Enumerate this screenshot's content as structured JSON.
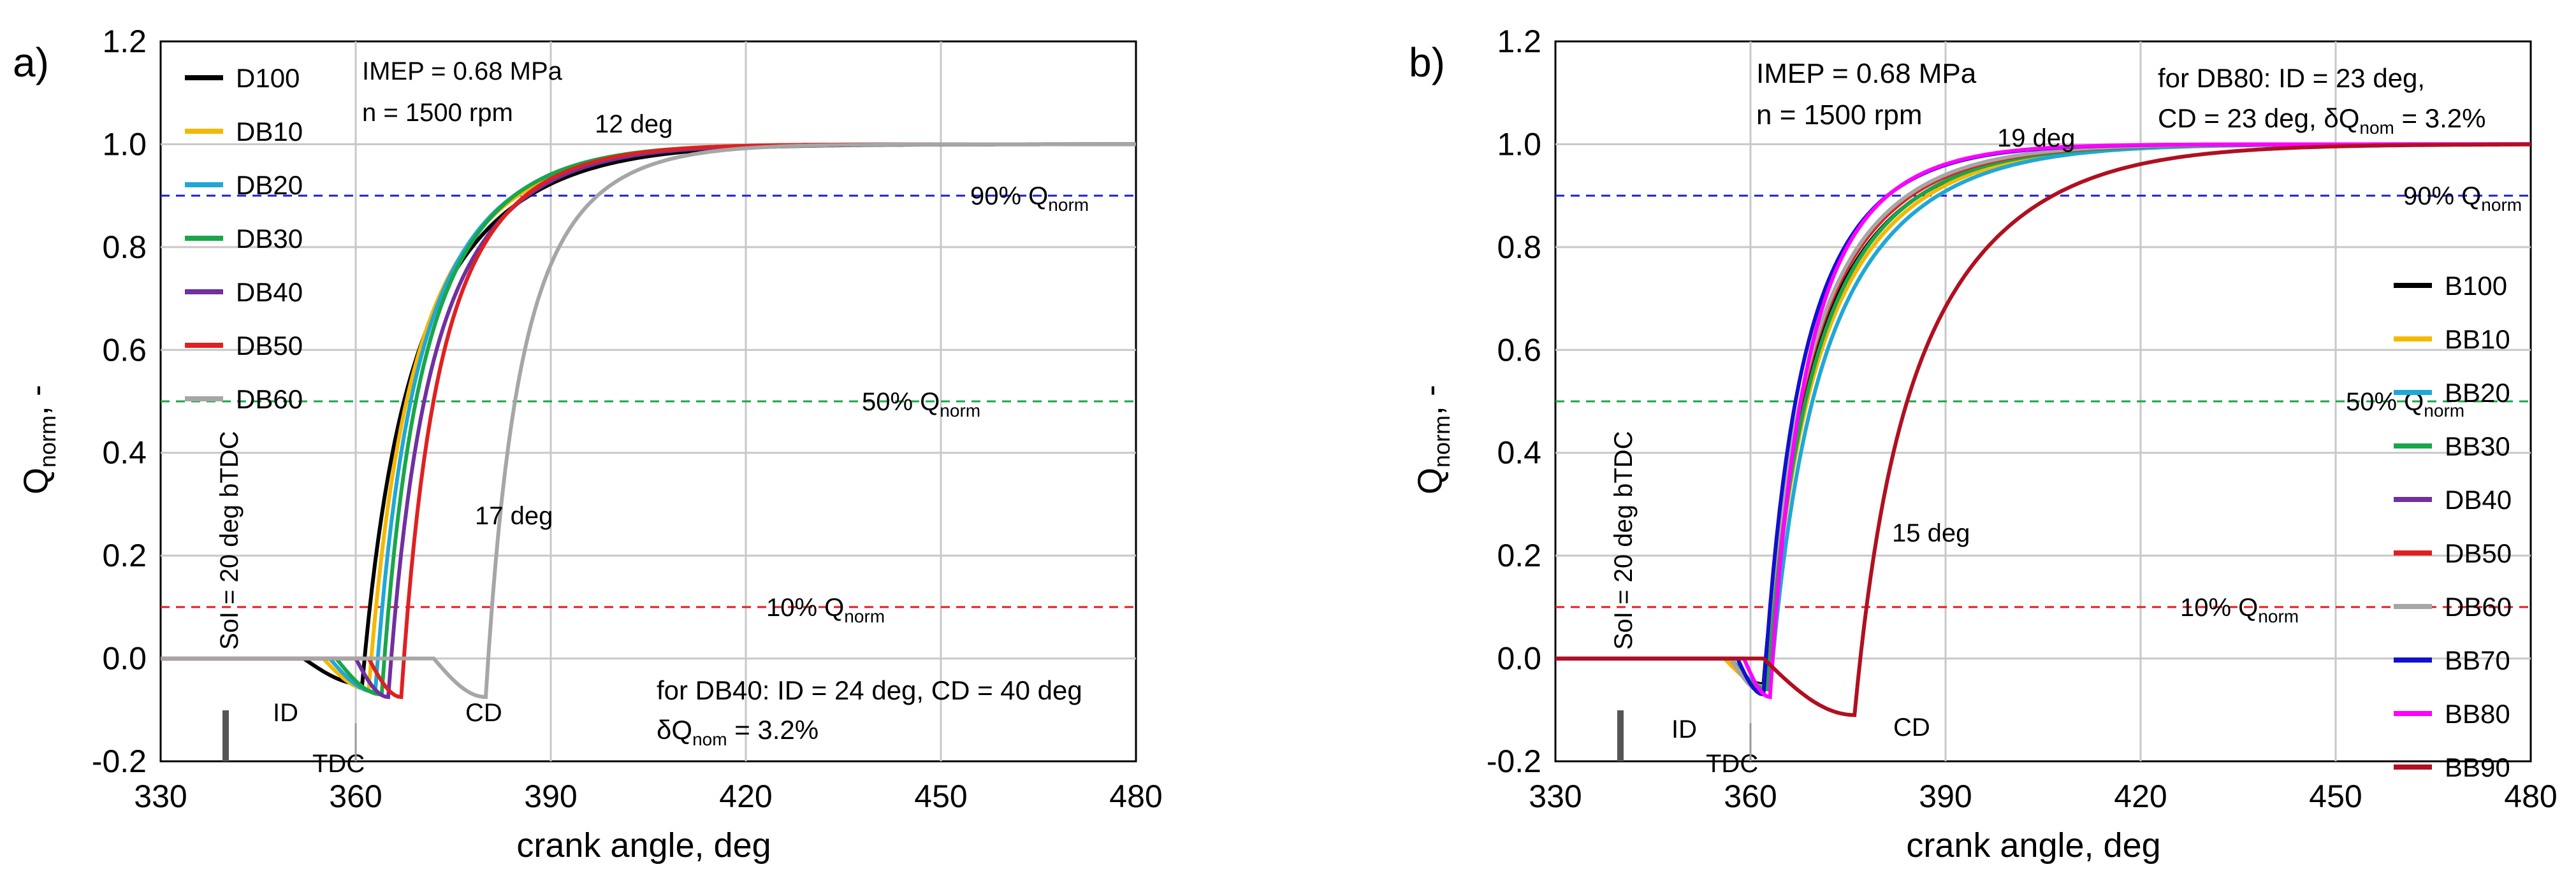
{
  "chart_data": [
    {
      "type": "line",
      "panel_label": "a)",
      "xlabel": "crank angle, deg",
      "ylabel_main": "Q",
      "ylabel_sub": "norm",
      "ylabel_suffix": ", -",
      "xlim": [
        330,
        480
      ],
      "ylim": [
        -0.2,
        1.2
      ],
      "xticks": [
        "330",
        "360",
        "390",
        "420",
        "450",
        "480"
      ],
      "yticks": [
        "-0.2",
        "0.0",
        "0.2",
        "0.4",
        "0.6",
        "0.8",
        "1.0",
        "1.2"
      ],
      "grid": true,
      "legend_position": "top-left",
      "info_lines": [
        "IMEP = 0.68 MPa",
        "n = 1500 rpm"
      ],
      "note_lines": [
        "for  DB40: ID = 24 deg, CD = 40 deg",
        "δQ",
        "nom",
        " = 3.2%"
      ],
      "tdc_label": "TDC",
      "soi_label": "SoI = 20 deg bTDC",
      "id_label": "ID",
      "cd_label": "CD",
      "deg_label_1": "12 deg",
      "deg_label_2": "17 deg",
      "ref_lines": [
        {
          "value": 0.9,
          "label": "90% Q",
          "sub": "norm",
          "color": "#1f1fd6"
        },
        {
          "value": 0.5,
          "label": "50% Q",
          "sub": "norm",
          "color": "#1aa64a"
        },
        {
          "value": 0.1,
          "label": "10% Q",
          "sub": "norm",
          "color": "#e02020"
        }
      ],
      "series": [
        {
          "name": "D100",
          "color": "#000000",
          "start": 352,
          "min": -0.05,
          "delay": 361,
          "k": 0.085
        },
        {
          "name": "DB10",
          "color": "#f5b800",
          "start": 355,
          "min": -0.06,
          "delay": 362,
          "k": 0.094
        },
        {
          "name": "DB20",
          "color": "#1fa8d6",
          "start": 356,
          "min": -0.065,
          "delay": 363,
          "k": 0.1
        },
        {
          "name": "DB30",
          "color": "#1aa64a",
          "start": 357,
          "min": -0.07,
          "delay": 364,
          "k": 0.104
        },
        {
          "name": "DB40",
          "color": "#7030a0",
          "start": 360,
          "min": -0.075,
          "delay": 365,
          "k": 0.1
        },
        {
          "name": "DB50",
          "color": "#e02020",
          "start": 362,
          "min": -0.075,
          "delay": 367,
          "k": 0.11
        },
        {
          "name": "DB60",
          "color": "#a6a6a6",
          "start": 372,
          "min": -0.075,
          "delay": 380,
          "k": 0.12
        }
      ]
    },
    {
      "type": "line",
      "panel_label": "b)",
      "xlabel": "crank angle, deg",
      "ylabel_main": "Q",
      "ylabel_sub": "norm",
      "ylabel_suffix": ", -",
      "xlim": [
        330,
        480
      ],
      "ylim": [
        -0.2,
        1.2
      ],
      "xticks": [
        "330",
        "360",
        "390",
        "420",
        "450",
        "480"
      ],
      "yticks": [
        "-0.2",
        "0.0",
        "0.2",
        "0.4",
        "0.6",
        "0.8",
        "1.0",
        "1.2"
      ],
      "grid": true,
      "legend_position": "bottom-right",
      "info_lines": [
        "IMEP = 0.68 MPa",
        "n = 1500 rpm"
      ],
      "note_lines": [
        "for  DB80: ID = 23 deg,",
        "CD = 23 deg, δQ",
        "nom",
        " = 3.2%"
      ],
      "tdc_label": "TDC",
      "soi_label": "SoI = 20 deg bTDC",
      "id_label": "ID",
      "cd_label": "CD",
      "deg_label_1": "19 deg",
      "deg_label_2": "15 deg",
      "ref_lines": [
        {
          "value": 0.9,
          "label": "90% Q",
          "sub": "norm",
          "color": "#1f1fd6"
        },
        {
          "value": 0.5,
          "label": "50% Q",
          "sub": "norm",
          "color": "#1aa64a"
        },
        {
          "value": 0.1,
          "label": "10% Q",
          "sub": "norm",
          "color": "#e02020"
        }
      ],
      "series": [
        {
          "name": "B100",
          "color": "#000000",
          "start": 356,
          "min": -0.05,
          "delay": 362,
          "k": 0.09
        },
        {
          "name": "BB10",
          "color": "#f5b800",
          "start": 356,
          "min": -0.055,
          "delay": 362.5,
          "k": 0.088
        },
        {
          "name": "BB20",
          "color": "#1fa8d6",
          "start": 357,
          "min": -0.06,
          "delay": 363,
          "k": 0.085
        },
        {
          "name": "BB30",
          "color": "#1aa64a",
          "start": 357,
          "min": -0.06,
          "delay": 362.5,
          "k": 0.092
        },
        {
          "name": "DB40",
          "color": "#7030a0",
          "start": 357,
          "min": -0.065,
          "delay": 362,
          "k": 0.095
        },
        {
          "name": "DB50",
          "color": "#e02020",
          "start": 357,
          "min": -0.065,
          "delay": 362,
          "k": 0.095
        },
        {
          "name": "DB60",
          "color": "#a6a6a6",
          "start": 357,
          "min": -0.065,
          "delay": 362,
          "k": 0.097
        },
        {
          "name": "BB70",
          "color": "#1010d0",
          "start": 358,
          "min": -0.07,
          "delay": 362,
          "k": 0.11
        },
        {
          "name": "BB80",
          "color": "#ff00ff",
          "start": 359,
          "min": -0.075,
          "delay": 363,
          "k": 0.115
        },
        {
          "name": "BB90",
          "color": "#b01020",
          "start": 362,
          "min": -0.11,
          "delay": 376,
          "k": 0.075
        }
      ]
    }
  ]
}
